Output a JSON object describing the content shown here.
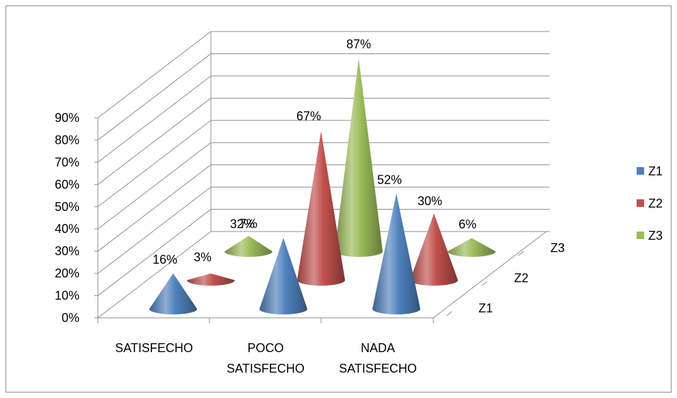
{
  "chart_data": {
    "type": "bar",
    "subtype": "3d-cone",
    "title": "",
    "xlabel": "",
    "ylabel": "",
    "ylim": [
      0,
      90
    ],
    "y_ticks": [
      "0%",
      "10%",
      "20%",
      "30%",
      "40%",
      "50%",
      "60%",
      "70%",
      "80%",
      "90%"
    ],
    "categories": [
      "SATISFECHO",
      "POCO SATISFECHO",
      "NADA SATISFECHO"
    ],
    "depth_labels": [
      "Z1",
      "Z2",
      "Z3"
    ],
    "legend_position": "right",
    "grid": true,
    "series": [
      {
        "name": "Z1",
        "color": "#4F81BD",
        "values": [
          16,
          32,
          52
        ],
        "labels": [
          "16%",
          "32%",
          "52%"
        ]
      },
      {
        "name": "Z2",
        "color": "#C0504D",
        "values": [
          3,
          67,
          30
        ],
        "labels": [
          "3%",
          "67%",
          "30%"
        ]
      },
      {
        "name": "Z3",
        "color": "#9BBB59",
        "values": [
          7,
          87,
          6
        ],
        "labels": [
          "7%",
          "87%",
          "6%"
        ]
      }
    ]
  }
}
